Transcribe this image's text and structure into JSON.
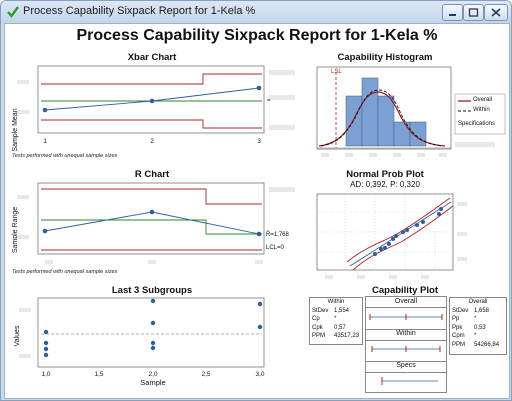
{
  "window": {
    "title": "Process Capability Sixpack Report for 1-Kela %",
    "buttons": [
      "minimize",
      "maximize",
      "close"
    ]
  },
  "report_title": "Process Capability Sixpack Report for 1-Kela %",
  "xbar": {
    "title": "Xbar Chart",
    "ylabel": "Sample Mean",
    "x_ticks": [
      "1",
      "2",
      "3"
    ],
    "note": "Tests performed with unequal sample sizes",
    "colors": {
      "limits": "#b02020",
      "center": "#2a8a2a",
      "data": "#2a5fa5"
    }
  },
  "rchart": {
    "title": "R Chart",
    "ylabel": "Sample Range",
    "rbar_label": "R̄=1,768",
    "lcl_label": "LCL=0",
    "note": "Tests performed with unequal sample sizes"
  },
  "last_subgroups": {
    "title": "Last 3 Subgroups",
    "ylabel": "Values",
    "xlabel": "Sample",
    "x_ticks": [
      "1,0",
      "1,5",
      "2,0",
      "2,5",
      "3,0"
    ]
  },
  "histogram": {
    "title": "Capability Histogram",
    "lsl_label": "LSL",
    "legend": [
      "Overall",
      "Within"
    ],
    "specifications_label": "Specifications",
    "colors": {
      "bars": "#7aa0d4",
      "overall": "#a01818",
      "within": "#111111",
      "lsl": "#b02020"
    }
  },
  "normal_prob": {
    "title": "Normal Prob Plot",
    "subtitle": "AD: 0,392, P: 0,320"
  },
  "capability_plot": {
    "title": "Capability Plot",
    "within_box": {
      "heading": "Within",
      "rows": [
        [
          "StDev",
          "1,554"
        ],
        [
          "Cp",
          "*"
        ],
        [
          "Cpk",
          "0,57"
        ],
        [
          "PPM",
          "43517,23"
        ]
      ]
    },
    "overall_box": {
      "heading": "Overall",
      "rows": [
        [
          "StDev",
          "1,658"
        ],
        [
          "Pp",
          "*"
        ],
        [
          "Ppk",
          "0,53"
        ],
        [
          "Cpm",
          "*"
        ],
        [
          "PPM",
          "54266,84"
        ]
      ]
    },
    "bars": [
      "Overall",
      "Within",
      "Specs"
    ]
  }
}
